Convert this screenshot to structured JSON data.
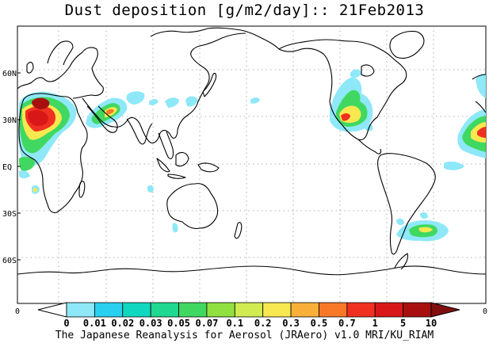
{
  "title": "Dust deposition [g/m2/day]:: 21Feb2013",
  "footer": "The Japanese Reanalysis for Aerosol (JRAero) v1.0 MRI/KU_RIAM",
  "map": {
    "projection": "cylindrical, Pacific-centred",
    "lat_ticks": [
      "60N",
      "30N",
      "EQ",
      "30S",
      "60S"
    ],
    "lat_values": [
      60,
      30,
      0,
      -30,
      -60
    ],
    "grid": "dotted",
    "edge_values": {
      "left": "0",
      "right": "0"
    }
  },
  "colorbar": {
    "labels": [
      "0",
      "0.01",
      "0.02",
      "0.03",
      "0.05",
      "0.07",
      "0.1",
      "0.2",
      "0.3",
      "0.5",
      "0.7",
      "1",
      "5",
      "10"
    ],
    "colors": [
      "#ffffff",
      "#8ee8f8",
      "#2ad0f0",
      "#10d8c0",
      "#20d890",
      "#40d860",
      "#90e040",
      "#d0ec50",
      "#f8e850",
      "#f8b038",
      "#f87828",
      "#f03020",
      "#d81818",
      "#a81010",
      "#801010"
    ]
  }
}
